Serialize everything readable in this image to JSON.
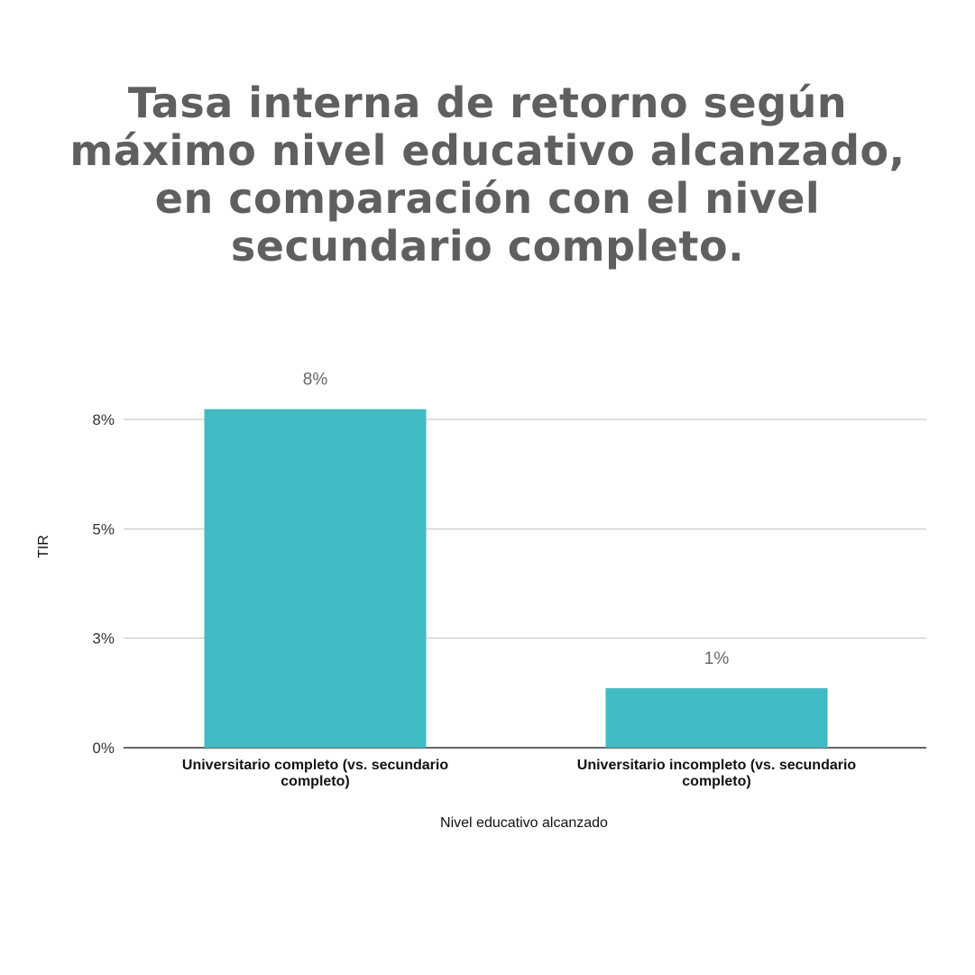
{
  "title_lines": [
    "Tasa interna de retorno según",
    "máximo nivel educativo alcanzado,",
    "en comparación con el nivel",
    "secundario completo."
  ],
  "colors": {
    "bar": "#41bbc3",
    "grid": "#cccccc",
    "baseline": "#333333",
    "title": "#5f5f5f"
  },
  "chart_data": {
    "type": "bar",
    "title": "Tasa interna de retorno según máximo nivel educativo alcanzado, en comparación con el nivel secundario completo.",
    "xlabel": "Nivel educativo alcanzado",
    "ylabel": "TIR",
    "ylim": [
      0,
      8
    ],
    "yticks": [
      0,
      2.67,
      5.33,
      8
    ],
    "ytick_labels": [
      "0%",
      "3%",
      "5%",
      "8%"
    ],
    "grid": true,
    "categories": [
      [
        "Universitario completo (vs. secundario",
        "completo)"
      ],
      [
        "Universitario incompleto  (vs. secundario",
        "completo)"
      ]
    ],
    "values": [
      8.25,
      1.45
    ],
    "data_labels": [
      "8%",
      "1%"
    ]
  }
}
